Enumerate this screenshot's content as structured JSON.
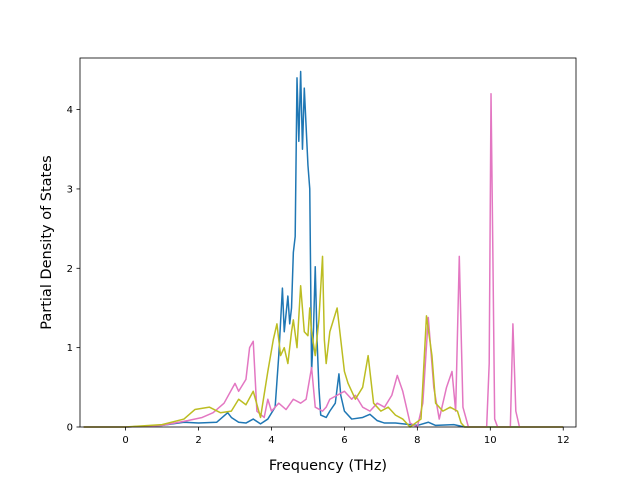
{
  "chart_data": {
    "type": "line",
    "title": "",
    "xlabel": "Frequency (THz)",
    "ylabel": "Partial Density of States",
    "xlim": [
      -1.25,
      12.35
    ],
    "ylim": [
      0,
      4.65
    ],
    "xticks": [
      0,
      2,
      4,
      6,
      8,
      10,
      12
    ],
    "yticks": [
      0,
      1,
      2,
      3,
      4
    ],
    "grid": false,
    "legend": "none",
    "series": [
      {
        "color": "#1f77b4",
        "points": [
          [
            -1.15,
            0
          ],
          [
            0,
            0
          ],
          [
            1,
            0.02
          ],
          [
            1.6,
            0.06
          ],
          [
            2.0,
            0.05
          ],
          [
            2.5,
            0.06
          ],
          [
            2.8,
            0.18
          ],
          [
            2.9,
            0.12
          ],
          [
            3.1,
            0.06
          ],
          [
            3.3,
            0.05
          ],
          [
            3.5,
            0.1
          ],
          [
            3.7,
            0.04
          ],
          [
            3.9,
            0.1
          ],
          [
            4.1,
            0.25
          ],
          [
            4.2,
            0.9
          ],
          [
            4.3,
            1.75
          ],
          [
            4.35,
            1.2
          ],
          [
            4.45,
            1.65
          ],
          [
            4.5,
            1.3
          ],
          [
            4.55,
            1.5
          ],
          [
            4.6,
            2.2
          ],
          [
            4.65,
            2.4
          ],
          [
            4.7,
            4.4
          ],
          [
            4.75,
            3.6
          ],
          [
            4.8,
            4.48
          ],
          [
            4.85,
            3.5
          ],
          [
            4.9,
            4.27
          ],
          [
            5.0,
            3.3
          ],
          [
            5.05,
            3.0
          ],
          [
            5.1,
            0.7
          ],
          [
            5.15,
            1.2
          ],
          [
            5.2,
            2.02
          ],
          [
            5.25,
            1.1
          ],
          [
            5.3,
            0.5
          ],
          [
            5.35,
            0.15
          ],
          [
            5.5,
            0.12
          ],
          [
            5.6,
            0.2
          ],
          [
            5.75,
            0.3
          ],
          [
            5.85,
            0.67
          ],
          [
            5.9,
            0.4
          ],
          [
            6.0,
            0.2
          ],
          [
            6.2,
            0.1
          ],
          [
            6.5,
            0.12
          ],
          [
            6.7,
            0.16
          ],
          [
            6.9,
            0.08
          ],
          [
            7.1,
            0.05
          ],
          [
            7.4,
            0.05
          ],
          [
            7.8,
            0.03
          ],
          [
            8.0,
            0.02
          ],
          [
            8.3,
            0.06
          ],
          [
            8.5,
            0.02
          ],
          [
            9.0,
            0.03
          ],
          [
            9.3,
            0
          ],
          [
            12.0,
            0
          ]
        ]
      },
      {
        "color": "#e377c2",
        "points": [
          [
            -1.15,
            0
          ],
          [
            0,
            0
          ],
          [
            1,
            0.02
          ],
          [
            1.7,
            0.08
          ],
          [
            2.1,
            0.12
          ],
          [
            2.4,
            0.18
          ],
          [
            2.7,
            0.3
          ],
          [
            3.0,
            0.55
          ],
          [
            3.1,
            0.45
          ],
          [
            3.3,
            0.6
          ],
          [
            3.4,
            1.0
          ],
          [
            3.5,
            1.08
          ],
          [
            3.6,
            0.2
          ],
          [
            3.8,
            0.12
          ],
          [
            3.9,
            0.35
          ],
          [
            4.0,
            0.2
          ],
          [
            4.2,
            0.3
          ],
          [
            4.4,
            0.22
          ],
          [
            4.6,
            0.35
          ],
          [
            4.8,
            0.3
          ],
          [
            4.95,
            0.35
          ],
          [
            5.1,
            0.75
          ],
          [
            5.2,
            0.25
          ],
          [
            5.4,
            0.2
          ],
          [
            5.5,
            0.25
          ],
          [
            5.6,
            0.35
          ],
          [
            5.8,
            0.4
          ],
          [
            6.0,
            0.45
          ],
          [
            6.2,
            0.35
          ],
          [
            6.3,
            0.4
          ],
          [
            6.5,
            0.25
          ],
          [
            6.7,
            0.2
          ],
          [
            6.9,
            0.3
          ],
          [
            7.1,
            0.25
          ],
          [
            7.3,
            0.4
          ],
          [
            7.45,
            0.65
          ],
          [
            7.6,
            0.45
          ],
          [
            7.8,
            0.05
          ],
          [
            8.0,
            0
          ],
          [
            8.15,
            0.3
          ],
          [
            8.3,
            1.38
          ],
          [
            8.45,
            0.5
          ],
          [
            8.6,
            0.1
          ],
          [
            8.8,
            0.5
          ],
          [
            8.95,
            0.7
          ],
          [
            9.05,
            0.2
          ],
          [
            9.15,
            2.15
          ],
          [
            9.25,
            0.25
          ],
          [
            9.4,
            0
          ],
          [
            9.9,
            0
          ],
          [
            9.97,
            0.8
          ],
          [
            10.02,
            4.2
          ],
          [
            10.07,
            2.2
          ],
          [
            10.12,
            0.1
          ],
          [
            10.2,
            0
          ],
          [
            10.55,
            0
          ],
          [
            10.62,
            1.3
          ],
          [
            10.7,
            0.2
          ],
          [
            10.8,
            0
          ],
          [
            12.0,
            0
          ]
        ]
      },
      {
        "color": "#bcbd22",
        "points": [
          [
            -1.15,
            0
          ],
          [
            0,
            0
          ],
          [
            1,
            0.03
          ],
          [
            1.6,
            0.1
          ],
          [
            1.9,
            0.22
          ],
          [
            2.3,
            0.25
          ],
          [
            2.6,
            0.18
          ],
          [
            2.9,
            0.2
          ],
          [
            3.1,
            0.35
          ],
          [
            3.3,
            0.28
          ],
          [
            3.5,
            0.45
          ],
          [
            3.7,
            0.12
          ],
          [
            3.9,
            0.7
          ],
          [
            4.05,
            1.1
          ],
          [
            4.15,
            1.3
          ],
          [
            4.25,
            0.9
          ],
          [
            4.35,
            1.0
          ],
          [
            4.45,
            0.8
          ],
          [
            4.55,
            1.2
          ],
          [
            4.6,
            1.35
          ],
          [
            4.7,
            1.0
          ],
          [
            4.8,
            1.78
          ],
          [
            4.9,
            1.2
          ],
          [
            5.0,
            1.15
          ],
          [
            5.05,
            1.5
          ],
          [
            5.1,
            1.2
          ],
          [
            5.2,
            0.9
          ],
          [
            5.3,
            1.35
          ],
          [
            5.4,
            2.15
          ],
          [
            5.45,
            1.1
          ],
          [
            5.5,
            0.8
          ],
          [
            5.6,
            1.2
          ],
          [
            5.7,
            1.35
          ],
          [
            5.8,
            1.5
          ],
          [
            5.9,
            1.1
          ],
          [
            6.0,
            0.7
          ],
          [
            6.1,
            0.55
          ],
          [
            6.3,
            0.35
          ],
          [
            6.5,
            0.5
          ],
          [
            6.65,
            0.9
          ],
          [
            6.8,
            0.3
          ],
          [
            7.0,
            0.2
          ],
          [
            7.2,
            0.25
          ],
          [
            7.4,
            0.15
          ],
          [
            7.6,
            0.1
          ],
          [
            7.8,
            0
          ],
          [
            8.1,
            0.1
          ],
          [
            8.25,
            1.4
          ],
          [
            8.4,
            0.9
          ],
          [
            8.5,
            0.3
          ],
          [
            8.7,
            0.2
          ],
          [
            8.9,
            0.25
          ],
          [
            9.1,
            0.2
          ],
          [
            9.2,
            0.05
          ],
          [
            9.3,
            0
          ],
          [
            12.0,
            0
          ]
        ]
      }
    ]
  }
}
